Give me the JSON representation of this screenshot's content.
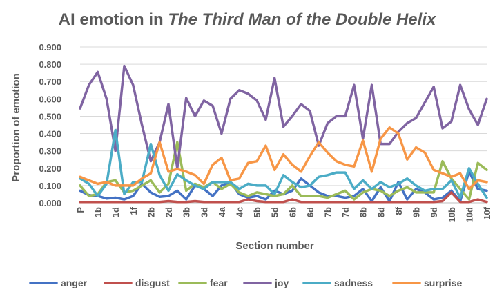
{
  "chart_data": {
    "type": "line",
    "title_prefix": "AI emotion in ",
    "title_italic": "The Third Man of the Double Helix",
    "xlabel": "Section number",
    "ylabel": "Proportion of emotion",
    "ylim": [
      0,
      0.9
    ],
    "yticks": [
      "0.000",
      "0.100",
      "0.200",
      "0.300",
      "0.400",
      "0.500",
      "0.600",
      "0.700",
      "0.800",
      "0.900"
    ],
    "grid": true,
    "legend_position": "bottom",
    "categories": [
      "P",
      "1a",
      "1b",
      "1c",
      "1d",
      "1e",
      "1f",
      "2a",
      "2b",
      "2c",
      "2d",
      "3a",
      "3b",
      "3c",
      "3d",
      "4",
      "4a",
      "4b",
      "4c",
      "5a",
      "5b",
      "5c",
      "5d",
      "6a",
      "6b",
      "6c",
      "6d",
      "7a",
      "7b",
      "7c",
      "7d",
      "8a",
      "8b",
      "8c",
      "8d",
      "8e",
      "8f",
      "9a",
      "9b",
      "9c",
      "9d",
      "10a",
      "10b",
      "10c",
      "10d",
      "10e",
      "10f"
    ],
    "tick_labels_shown": [
      "P",
      "1b",
      "1d",
      "1f",
      "2b",
      "2d",
      "3b",
      "3d",
      "4a",
      "4c",
      "5b",
      "5d",
      "6b",
      "6d",
      "7b",
      "7d",
      "8b",
      "8d",
      "8f",
      "9b",
      "9d",
      "10b",
      "10d",
      "10f"
    ],
    "series": [
      {
        "name": "anger",
        "color": "#4472C4",
        "values": [
          0.07,
          0.045,
          0.04,
          0.025,
          0.03,
          0.02,
          0.04,
          0.11,
          0.06,
          0.035,
          0.04,
          0.07,
          0.02,
          0.1,
          0.08,
          0.04,
          0.1,
          0.12,
          0.05,
          0.03,
          0.04,
          0.02,
          0.07,
          0.05,
          0.07,
          0.14,
          0.1,
          0.06,
          0.04,
          0.04,
          0.03,
          0.04,
          0.08,
          0.01,
          0.09,
          0.01,
          0.12,
          0.02,
          0.08,
          0.06,
          0.02,
          0.03,
          0.07,
          0.01,
          0.18,
          0.08,
          0.07
        ]
      },
      {
        "name": "disgust",
        "color": "#C0504D",
        "values": [
          0.005,
          0.005,
          0.005,
          0.005,
          0.005,
          0.005,
          0.005,
          0.005,
          0.005,
          0.005,
          0.01,
          0.005,
          0.005,
          0.01,
          0.005,
          0.005,
          0.005,
          0.005,
          0.005,
          0.02,
          0.01,
          0.005,
          0.005,
          0.005,
          0.02,
          0.005,
          0.005,
          0.005,
          0.005,
          0.005,
          0.005,
          0.005,
          0.005,
          0.005,
          0.005,
          0.005,
          0.005,
          0.005,
          0.005,
          0.005,
          0.005,
          0.01,
          0.06,
          0.005,
          0.005,
          0.02,
          0.005
        ]
      },
      {
        "name": "fear",
        "color": "#9BBB59",
        "values": [
          0.1,
          0.04,
          0.05,
          0.12,
          0.13,
          0.06,
          0.07,
          0.1,
          0.13,
          0.06,
          0.11,
          0.35,
          0.07,
          0.11,
          0.09,
          0.12,
          0.08,
          0.11,
          0.06,
          0.04,
          0.06,
          0.05,
          0.04,
          0.05,
          0.1,
          0.04,
          0.04,
          0.04,
          0.03,
          0.05,
          0.07,
          0.02,
          0.06,
          0.08,
          0.07,
          0.04,
          0.07,
          0.09,
          0.06,
          0.06,
          0.06,
          0.24,
          0.14,
          0.08,
          0.02,
          0.23,
          0.19
        ]
      },
      {
        "name": "joy",
        "color": "#8064A2",
        "values": [
          0.545,
          0.68,
          0.755,
          0.6,
          0.3,
          0.79,
          0.68,
          0.45,
          0.24,
          0.35,
          0.57,
          0.2,
          0.605,
          0.5,
          0.59,
          0.56,
          0.4,
          0.6,
          0.65,
          0.63,
          0.59,
          0.48,
          0.72,
          0.44,
          0.5,
          0.57,
          0.53,
          0.33,
          0.46,
          0.5,
          0.5,
          0.68,
          0.37,
          0.68,
          0.34,
          0.34,
          0.41,
          0.46,
          0.49,
          0.58,
          0.67,
          0.43,
          0.47,
          0.68,
          0.54,
          0.45,
          0.6
        ]
      },
      {
        "name": "sadness",
        "color": "#4BACC6",
        "values": [
          0.14,
          0.11,
          0.04,
          0.11,
          0.42,
          0.05,
          0.12,
          0.12,
          0.34,
          0.16,
          0.07,
          0.165,
          0.13,
          0.1,
          0.08,
          0.12,
          0.12,
          0.12,
          0.08,
          0.11,
          0.1,
          0.1,
          0.05,
          0.16,
          0.12,
          0.09,
          0.1,
          0.15,
          0.16,
          0.175,
          0.175,
          0.08,
          0.13,
          0.08,
          0.12,
          0.09,
          0.11,
          0.14,
          0.1,
          0.07,
          0.08,
          0.08,
          0.13,
          0.03,
          0.2,
          0.11,
          0.03
        ]
      },
      {
        "name": "surprise",
        "color": "#F79646",
        "values": [
          0.15,
          0.13,
          0.11,
          0.12,
          0.1,
          0.1,
          0.1,
          0.14,
          0.17,
          0.35,
          0.18,
          0.195,
          0.18,
          0.16,
          0.11,
          0.22,
          0.26,
          0.13,
          0.14,
          0.23,
          0.24,
          0.33,
          0.19,
          0.28,
          0.22,
          0.18,
          0.27,
          0.35,
          0.29,
          0.24,
          0.22,
          0.21,
          0.36,
          0.18,
          0.37,
          0.435,
          0.4,
          0.25,
          0.32,
          0.29,
          0.19,
          0.17,
          0.15,
          0.17,
          0.08,
          0.13,
          0.12
        ]
      }
    ]
  }
}
